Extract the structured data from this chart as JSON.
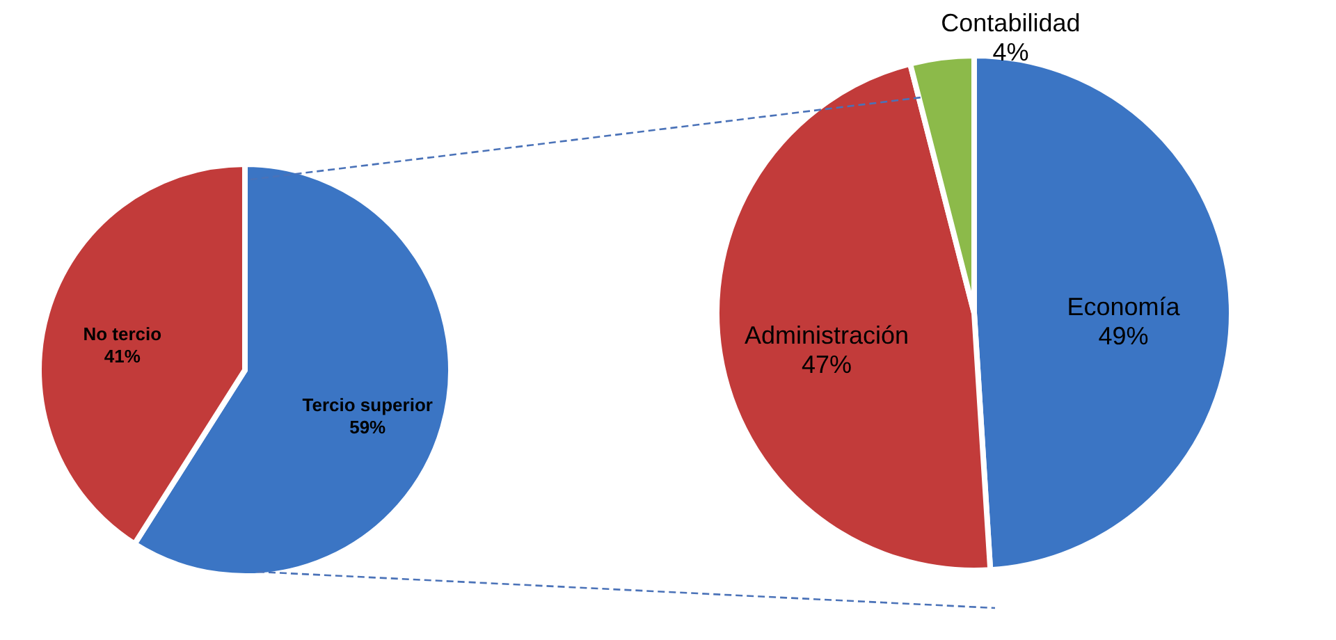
{
  "chart_data": [
    {
      "type": "pie",
      "categories": [
        "Tercio superior",
        "No tercio"
      ],
      "values": [
        59,
        41
      ],
      "colors": [
        "#3b75c4",
        "#c23b3a"
      ],
      "value_labels": [
        "59%",
        "41%"
      ]
    },
    {
      "type": "pie",
      "categories": [
        "Economía",
        "Administración",
        "Contabilidad"
      ],
      "values": [
        49,
        47,
        4
      ],
      "colors": [
        "#3b75c4",
        "#c23b3a",
        "#8cba4a"
      ],
      "value_labels": [
        "49%",
        "47%",
        "4%"
      ]
    }
  ]
}
